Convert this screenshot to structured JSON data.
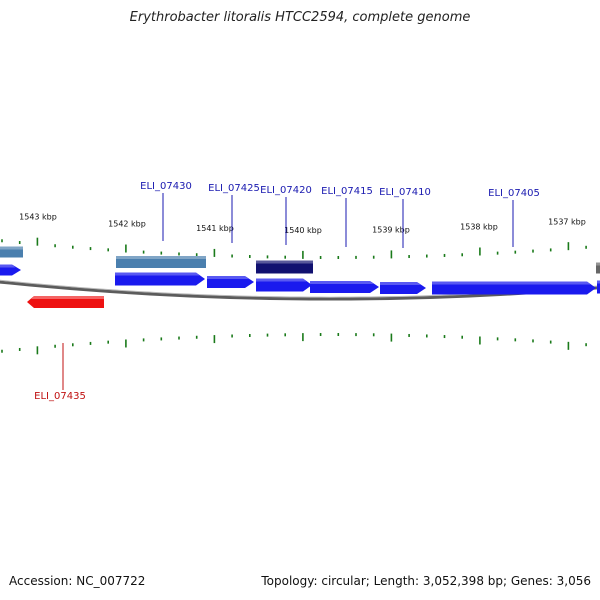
{
  "title": "Erythrobacter litoralis HTCC2594, complete genome",
  "footer": {
    "accession": "Accession: NC_007722",
    "summary": "Topology: circular; Length: 3,052,398 bp; Genes: 3,056"
  },
  "colors": {
    "cds_forward": "#1a1aee",
    "cds_reverse": "#ee1111",
    "rna_steel": "#4a7fae",
    "rna_navy": "#101070",
    "tick": "#1a7a1a",
    "backbone": "#888888",
    "label_forward": "#1a1ab0",
    "label_reverse": "#c01010"
  },
  "ticks": [
    {
      "label": "1543 kbp"
    },
    {
      "label": "1542 kbp"
    },
    {
      "label": "1541 kbp"
    },
    {
      "label": "1540 kbp"
    },
    {
      "label": "1539 kbp"
    },
    {
      "label": "1538 kbp"
    },
    {
      "label": "1537 kbp"
    }
  ],
  "genes": [
    {
      "name": "ELI_07430",
      "strand": "forward"
    },
    {
      "name": "ELI_07425",
      "strand": "forward"
    },
    {
      "name": "ELI_07420",
      "strand": "forward"
    },
    {
      "name": "ELI_07415",
      "strand": "forward"
    },
    {
      "name": "ELI_07410",
      "strand": "forward"
    },
    {
      "name": "ELI_07405",
      "strand": "forward"
    },
    {
      "name": "ELI_07435",
      "strand": "reverse"
    }
  ]
}
